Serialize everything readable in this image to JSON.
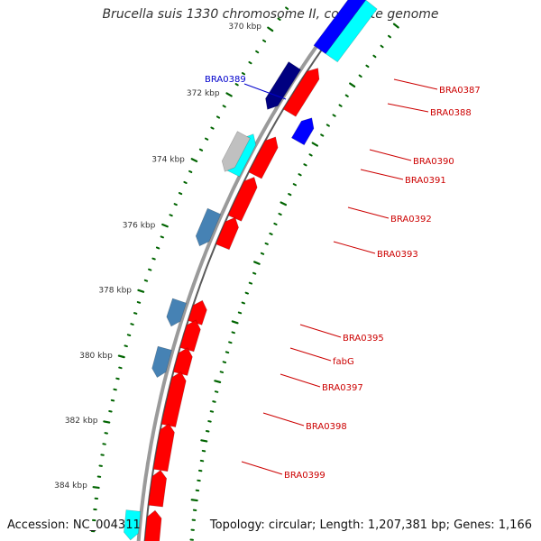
{
  "title": "Brucella suis 1330 chromosome II, complete genome",
  "footer": {
    "accession": "Accession: NC_004311",
    "summary": "Topology: circular; Length: 1,207,381 bp; Genes: 1,166"
  },
  "colors": {
    "forward_gene": "#ff0000",
    "reverse_gene": "#4682b4",
    "reverse_gene_dark": "#000080",
    "highlight_gene": "#0000ff",
    "cyan_feature": "#00ffff",
    "gray_feature": "#c0c0c0",
    "backbone": "#808080",
    "tick": "#006400",
    "label_red": "#cc0000",
    "label_blue": "#0000cc"
  },
  "scale_labels": [
    "370 kbp",
    "372 kbp",
    "374 kbp",
    "376 kbp",
    "378 kbp",
    "380 kbp",
    "382 kbp",
    "384 kbp"
  ],
  "gene_labels": [
    {
      "text": "BRA0387",
      "color": "red"
    },
    {
      "text": "BRA0388",
      "color": "red"
    },
    {
      "text": "BRA0389",
      "color": "blue"
    },
    {
      "text": "BRA0390",
      "color": "red"
    },
    {
      "text": "BRA0391",
      "color": "red"
    },
    {
      "text": "BRA0392",
      "color": "red"
    },
    {
      "text": "BRA0393",
      "color": "red"
    },
    {
      "text": "BRA0395",
      "color": "red"
    },
    {
      "text": "fabG",
      "color": "red"
    },
    {
      "text": "BRA0397",
      "color": "red"
    },
    {
      "text": "BRA0398",
      "color": "red"
    },
    {
      "text": "BRA0399",
      "color": "red"
    }
  ]
}
